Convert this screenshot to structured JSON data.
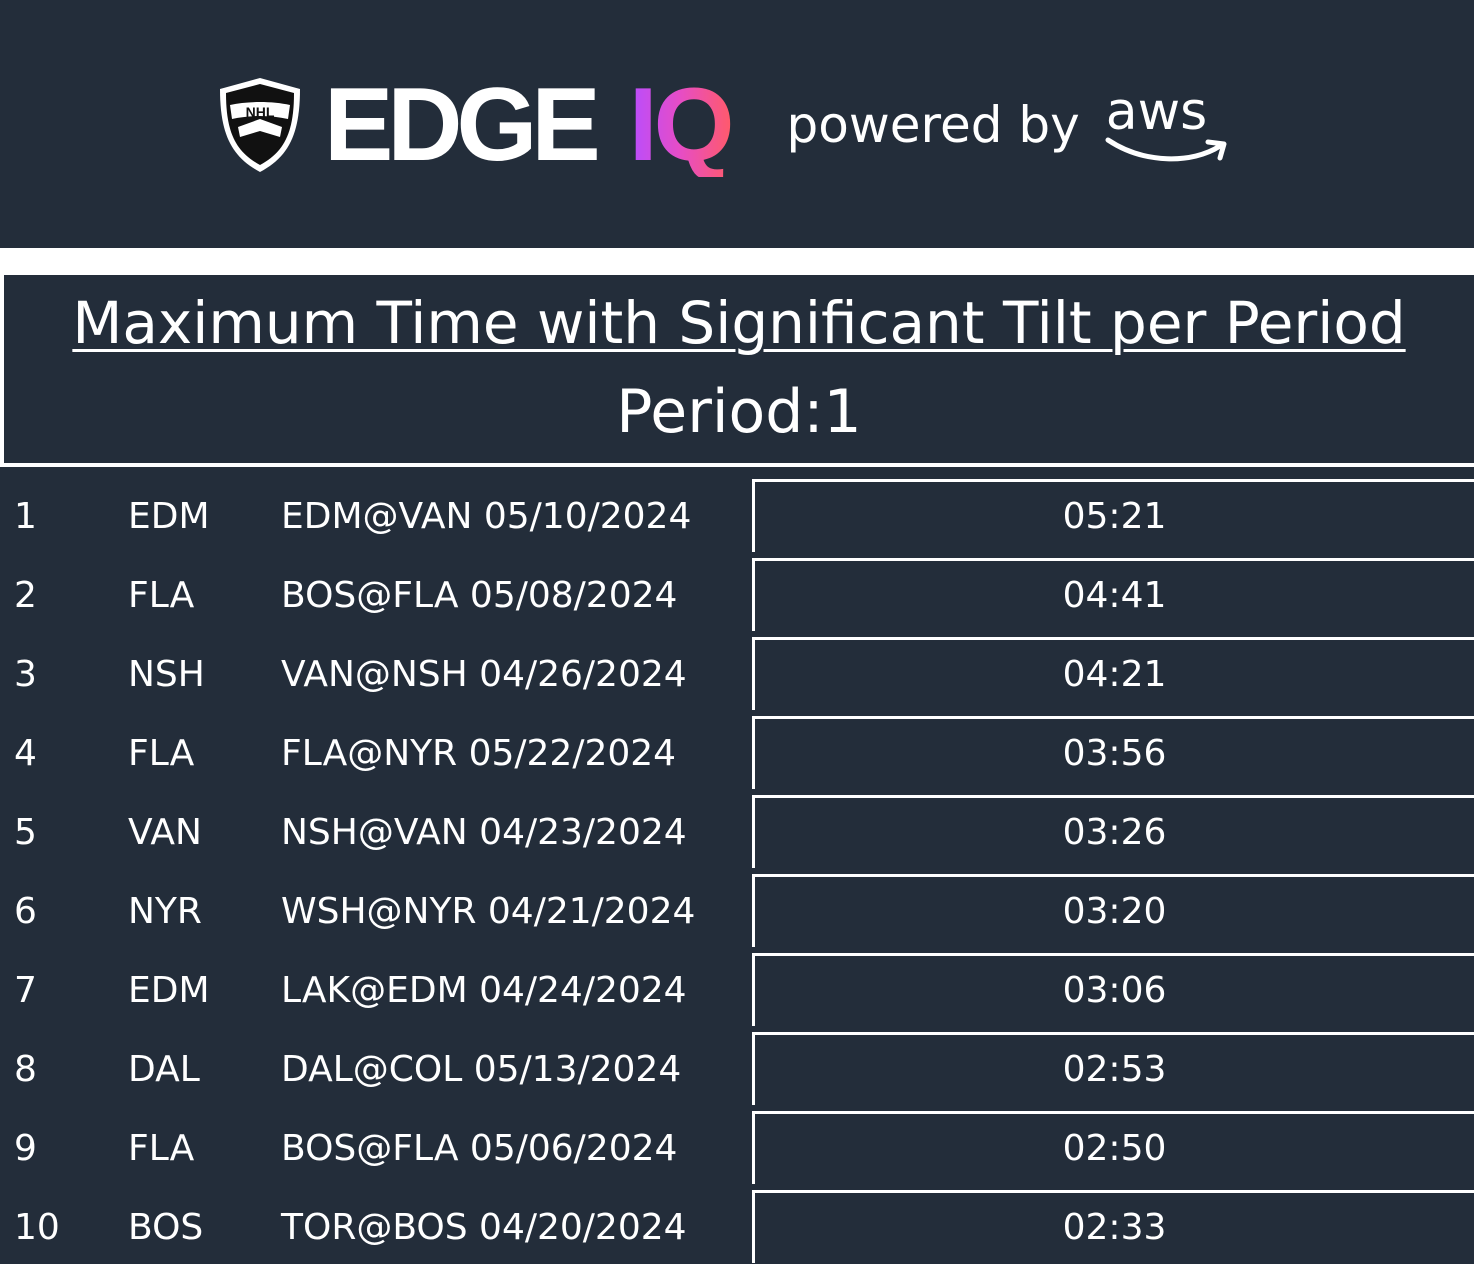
{
  "header": {
    "brand_edge": "EDGE",
    "brand_iq": "IQ",
    "powered_by": "powered by",
    "aws": "aws"
  },
  "title": "Maximum Time with Significant Tilt per Period",
  "period_label": "Period:1",
  "rows": [
    {
      "rank": "1",
      "team": "EDM",
      "game": "EDM@VAN 05/10/2024",
      "time": "05:21"
    },
    {
      "rank": "2",
      "team": "FLA",
      "game": "BOS@FLA 05/08/2024",
      "time": "04:41"
    },
    {
      "rank": "3",
      "team": "NSH",
      "game": "VAN@NSH 04/26/2024",
      "time": "04:21"
    },
    {
      "rank": "4",
      "team": "FLA",
      "game": "FLA@NYR 05/22/2024",
      "time": "03:56"
    },
    {
      "rank": "5",
      "team": "VAN",
      "game": "NSH@VAN 04/23/2024",
      "time": "03:26"
    },
    {
      "rank": "6",
      "team": "NYR",
      "game": "WSH@NYR 04/21/2024",
      "time": "03:20"
    },
    {
      "rank": "7",
      "team": "EDM",
      "game": "LAK@EDM 04/24/2024",
      "time": "03:06"
    },
    {
      "rank": "8",
      "team": "DAL",
      "game": "DAL@COL 05/13/2024",
      "time": "02:53"
    },
    {
      "rank": "9",
      "team": "FLA",
      "game": "BOS@FLA 05/06/2024",
      "time": "02:50"
    },
    {
      "rank": "10",
      "team": "BOS",
      "game": "TOR@BOS 04/20/2024",
      "time": "02:33"
    }
  ],
  "colors": {
    "background": "#232d3a",
    "text": "#ffffff",
    "iq_gradient_start": "#b84dff",
    "iq_gradient_end": "#ff5a6b"
  }
}
